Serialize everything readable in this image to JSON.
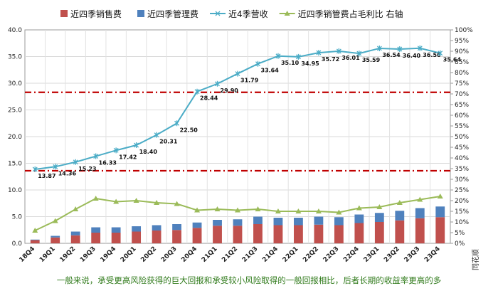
{
  "chart_data": {
    "type": "bar",
    "categories": [
      "18Q4",
      "19Q1",
      "19Q2",
      "19Q3",
      "19Q4",
      "20Q1",
      "20Q2",
      "20Q3",
      "20Q4",
      "21Q1",
      "21Q2",
      "21Q3",
      "21Q4",
      "22Q1",
      "22Q2",
      "22Q3",
      "22Q4",
      "23Q1",
      "23Q2",
      "23Q3",
      "23Q4"
    ],
    "series": [
      {
        "name": "近四季销售费",
        "kind": "bar",
        "axis": "left",
        "color": "#c0504d",
        "values": [
          0.6,
          1.1,
          1.5,
          2.0,
          2.0,
          2.2,
          2.4,
          2.5,
          2.9,
          3.3,
          3.3,
          3.6,
          3.4,
          3.4,
          3.5,
          3.4,
          3.8,
          4.0,
          4.3,
          4.7,
          4.9
        ]
      },
      {
        "name": "近四季管理费",
        "kind": "bar",
        "axis": "left",
        "color": "#4f81bd",
        "values": [
          0.1,
          0.3,
          0.7,
          1.0,
          1.0,
          1.0,
          1.0,
          1.1,
          1.0,
          1.1,
          1.2,
          1.4,
          1.4,
          1.4,
          1.5,
          1.5,
          1.6,
          1.7,
          1.8,
          1.9,
          2.0
        ]
      },
      {
        "name": "近4季营收",
        "kind": "line",
        "axis": "left",
        "color": "#4bacc6",
        "values": [
          13.87,
          14.36,
          15.23,
          16.33,
          17.42,
          18.4,
          20.31,
          22.5,
          28.44,
          29.9,
          31.79,
          33.64,
          35.1,
          34.95,
          35.72,
          36.01,
          35.59,
          36.54,
          36.4,
          36.56,
          35.64
        ],
        "labels": [
          "13.87",
          "14.36",
          "15.23",
          "16.33",
          "17.42",
          "18.40",
          "20.31",
          "22.50",
          "28.44",
          "29.90",
          "31.79",
          "33.64",
          "35.10",
          "34.95",
          "35.72",
          "36.01",
          "35.59",
          "36.54",
          "36.40",
          "36.56",
          "35.64"
        ]
      },
      {
        "name": "近四季销管费占毛利比 右轴",
        "kind": "line",
        "axis": "right",
        "color": "#9bbb59",
        "values": [
          6,
          10.5,
          16,
          21,
          19.5,
          20,
          19,
          18.5,
          15.5,
          16,
          15.5,
          16,
          15,
          15,
          15,
          14.5,
          16.5,
          17,
          19,
          20.5,
          22
        ]
      }
    ],
    "ylim": [
      0,
      40
    ],
    "yticks": [
      "0.0",
      "5.0",
      "10.0",
      "15.0",
      "20.0",
      "25.0",
      "30.0",
      "35.0",
      "40.0"
    ],
    "y2lim": [
      0,
      100
    ],
    "y2ticks": [
      "0%",
      "5%",
      "10%",
      "15%",
      "20%",
      "25%",
      "30%",
      "35%",
      "40%",
      "45%",
      "50%",
      "55%",
      "60%",
      "65%",
      "70%",
      "75%",
      "80%",
      "85%",
      "90%",
      "95%",
      "100%"
    ],
    "reference_lines": [
      {
        "axis": "left",
        "value": 13.6,
        "color": "#c00000",
        "style": "dash-dot"
      },
      {
        "axis": "left",
        "value": 28.3,
        "color": "#c00000",
        "style": "dash-dot"
      }
    ],
    "legend_position": "top",
    "grid": true
  },
  "footer_text": "一般来说，承受更高风险获得的巨大回报和承受较小风险取得的一般回报相比，后者长期的收益率更高的多",
  "watermark": "同花顺"
}
